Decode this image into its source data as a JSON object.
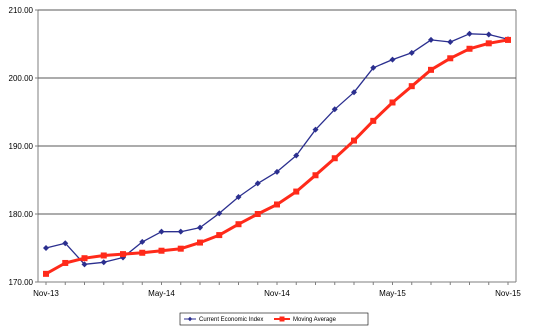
{
  "chart_data": {
    "type": "line",
    "title": "",
    "xlabel": "",
    "ylabel": "",
    "ylim": [
      170,
      210
    ],
    "yticks": [
      170,
      180,
      190,
      200,
      210
    ],
    "ytick_labels": [
      "170.00",
      "180.00",
      "190.00",
      "200.00",
      "210.00"
    ],
    "x": [
      "Nov-13",
      "Dec-13",
      "Jan-14",
      "Feb-14",
      "Mar-14",
      "Apr-14",
      "May-14",
      "Jun-14",
      "Jul-14",
      "Aug-14",
      "Sep-14",
      "Oct-14",
      "Nov-14",
      "Dec-14",
      "Jan-15",
      "Feb-15",
      "Mar-15",
      "Apr-15",
      "May-15",
      "Jun-15",
      "Jul-15",
      "Aug-15",
      "Sep-15",
      "Oct-15",
      "Nov-15"
    ],
    "xtick_labels": [
      "Nov-13",
      "May-14",
      "Nov-14",
      "May-15",
      "Nov-15"
    ],
    "grid": "horizontal",
    "legend": "bottom",
    "series": [
      {
        "name": "Current Economic Index",
        "color": "#2b2f8f",
        "marker": "diamond",
        "values": [
          175.0,
          175.7,
          172.6,
          172.9,
          173.6,
          175.9,
          177.4,
          177.4,
          178.0,
          180.1,
          182.5,
          184.5,
          186.2,
          188.6,
          192.4,
          195.4,
          197.9,
          201.5,
          202.7,
          203.7,
          205.6,
          205.3,
          206.5,
          206.4,
          205.7
        ]
      },
      {
        "name": "Moving Average",
        "color": "#ff2a1a",
        "marker": "square",
        "values": [
          171.2,
          172.8,
          173.5,
          173.9,
          174.1,
          174.3,
          174.6,
          174.9,
          175.8,
          176.9,
          178.5,
          180.0,
          181.4,
          183.3,
          185.7,
          188.2,
          190.8,
          193.7,
          196.4,
          198.8,
          201.2,
          202.9,
          204.3,
          205.1,
          205.6
        ]
      }
    ]
  }
}
